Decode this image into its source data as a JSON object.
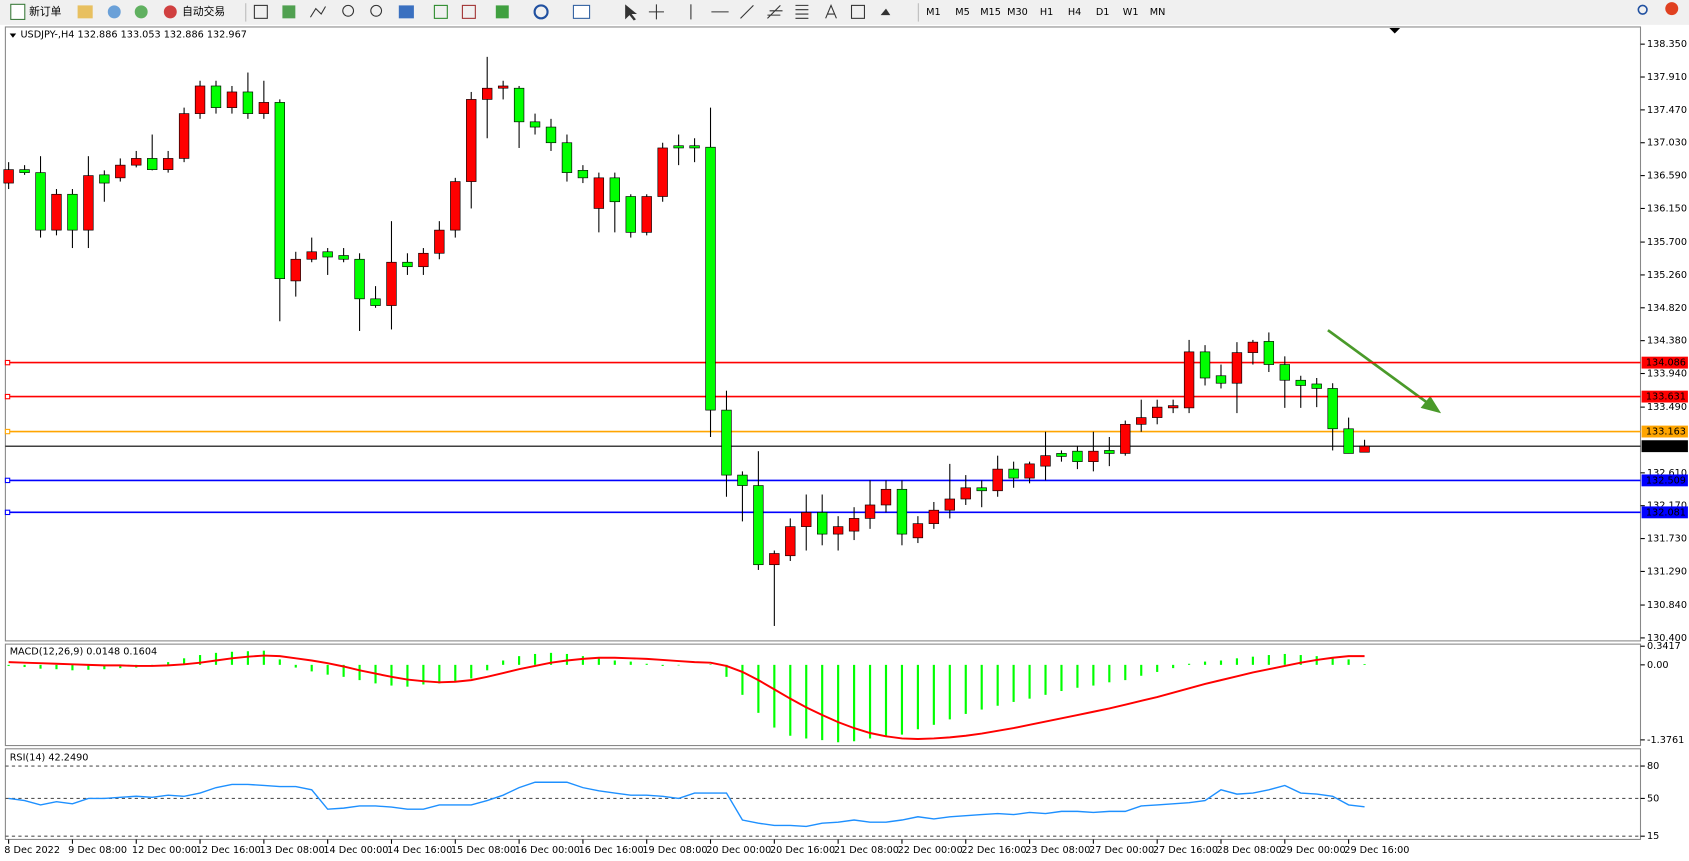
{
  "toolbar": {
    "new_order": "新订单",
    "auto_trading": "自动交易",
    "timeframes": [
      "M1",
      "M5",
      "M15",
      "M30",
      "H1",
      "H4",
      "D1",
      "W1",
      "MN"
    ]
  },
  "chart_data": [
    {
      "type": "candlestick",
      "title": "USDJPY-,H4  132.886 133.053 132.886 132.967",
      "categories": [
        "8 Dec 2022",
        null,
        null,
        null,
        "9 Dec 08:00",
        null,
        null,
        null,
        "12 Dec 00:00",
        null,
        null,
        null,
        "12 Dec 16:00",
        null,
        null,
        null,
        "13 Dec 08:00",
        null,
        null,
        null,
        "14 Dec 00:00",
        null,
        null,
        null,
        "14 Dec 16:00",
        null,
        null,
        null,
        "15 Dec 08:00",
        null,
        null,
        null,
        "16 Dec 00:00",
        null,
        null,
        null,
        "16 Dec 16:00",
        null,
        null,
        null,
        "19 Dec 08:00",
        null,
        null,
        null,
        "20 Dec 00:00",
        null,
        null,
        null,
        "20 Dec 16:00",
        null,
        null,
        null,
        "21 Dec 08:00",
        null,
        null,
        null,
        "22 Dec 00:00",
        null,
        null,
        null,
        "22 Dec 16:00",
        null,
        null,
        null,
        "23 Dec 08:00",
        null,
        null,
        null,
        "27 Dec 00:00",
        null,
        null,
        null,
        "27 Dec 16:00",
        null,
        null,
        null,
        "28 Dec 08:00",
        null,
        null,
        null,
        "29 Dec 00:00",
        null,
        null,
        null,
        "29 Dec 16:00",
        null
      ],
      "open": [
        136.49,
        136.67,
        136.63,
        135.86,
        136.34,
        135.86,
        136.6,
        136.56,
        136.73,
        136.82,
        136.67,
        136.82,
        137.42,
        137.79,
        137.5,
        137.71,
        137.42,
        137.57,
        135.18,
        135.47,
        135.57,
        135.52,
        135.47,
        134.94,
        134.85,
        135.43,
        135.37,
        135.55,
        135.86,
        136.51,
        137.61,
        137.76,
        137.76,
        137.31,
        137.24,
        137.03,
        136.66,
        136.15,
        136.56,
        136.31,
        135.83,
        136.31,
        136.99,
        136.99,
        136.97,
        133.45,
        132.58,
        132.44,
        131.38,
        131.5,
        131.89,
        132.08,
        131.79,
        131.83,
        132.0,
        132.18,
        132.39,
        131.74,
        131.93,
        132.11,
        132.26,
        132.41,
        132.37,
        132.66,
        132.54,
        132.7,
        132.87,
        132.9,
        132.76,
        132.91,
        132.87,
        133.26,
        133.35,
        133.48,
        133.48,
        134.23,
        133.91,
        133.81,
        134.22,
        134.37,
        134.06,
        133.85,
        133.8,
        133.74,
        133.2,
        132.886
      ],
      "high": [
        136.77,
        136.73,
        136.85,
        136.41,
        136.41,
        136.85,
        136.66,
        136.82,
        136.92,
        137.14,
        136.92,
        137.5,
        137.86,
        137.86,
        137.79,
        137.97,
        137.86,
        137.61,
        135.57,
        135.76,
        135.62,
        135.62,
        135.55,
        135.11,
        135.98,
        135.55,
        135.62,
        135.98,
        136.56,
        137.71,
        138.18,
        137.86,
        137.79,
        137.42,
        137.35,
        137.14,
        136.73,
        136.63,
        136.63,
        136.34,
        136.34,
        137.03,
        137.14,
        137.09,
        137.5,
        133.71,
        132.63,
        132.9,
        131.57,
        132.0,
        132.32,
        132.32,
        132.03,
        132.15,
        132.51,
        132.51,
        132.51,
        132.03,
        132.22,
        132.73,
        132.58,
        132.51,
        132.84,
        132.76,
        132.76,
        133.16,
        132.91,
        132.97,
        133.16,
        133.09,
        133.31,
        133.59,
        133.59,
        133.59,
        134.39,
        134.32,
        134.06,
        134.36,
        134.39,
        134.49,
        134.17,
        133.91,
        133.88,
        133.81,
        133.35,
        133.053
      ],
      "low": [
        136.41,
        136.6,
        135.76,
        135.79,
        135.62,
        135.62,
        136.24,
        136.51,
        136.7,
        136.66,
        136.63,
        136.77,
        137.35,
        137.42,
        137.42,
        137.35,
        137.35,
        134.64,
        134.97,
        135.43,
        135.26,
        135.43,
        134.51,
        134.82,
        134.53,
        135.26,
        135.26,
        135.47,
        135.76,
        136.15,
        137.09,
        137.61,
        136.96,
        137.14,
        136.92,
        136.51,
        136.49,
        135.83,
        135.83,
        135.76,
        135.79,
        136.24,
        136.73,
        136.77,
        133.09,
        132.29,
        131.96,
        131.31,
        130.56,
        131.43,
        131.57,
        131.64,
        131.57,
        131.71,
        131.86,
        132.08,
        131.64,
        131.67,
        131.86,
        132.0,
        132.18,
        132.15,
        132.29,
        132.41,
        132.47,
        132.51,
        132.76,
        132.66,
        132.63,
        132.7,
        132.84,
        133.16,
        133.26,
        133.41,
        133.41,
        133.78,
        133.74,
        133.41,
        134.06,
        133.96,
        133.48,
        133.48,
        133.49,
        132.91,
        132.87,
        132.886
      ],
      "close": [
        136.67,
        136.63,
        135.86,
        136.34,
        135.86,
        136.59,
        136.49,
        136.73,
        136.82,
        136.67,
        136.82,
        137.42,
        137.79,
        137.5,
        137.71,
        137.42,
        137.57,
        135.21,
        135.47,
        135.57,
        135.5,
        135.47,
        134.94,
        134.85,
        135.43,
        135.37,
        135.55,
        135.86,
        136.51,
        137.61,
        137.76,
        137.79,
        137.31,
        137.24,
        137.03,
        136.63,
        136.56,
        136.56,
        136.24,
        135.83,
        136.31,
        136.96,
        136.96,
        136.96,
        133.45,
        132.58,
        132.44,
        131.38,
        131.53,
        131.89,
        132.08,
        131.79,
        131.89,
        132.0,
        132.18,
        132.39,
        131.79,
        131.93,
        132.11,
        132.26,
        132.41,
        132.37,
        132.66,
        132.54,
        132.73,
        132.84,
        132.83,
        132.76,
        132.9,
        132.87,
        133.26,
        133.35,
        133.49,
        133.51,
        134.23,
        133.88,
        133.81,
        134.22,
        134.36,
        134.06,
        133.85,
        133.78,
        133.74,
        133.2,
        132.87,
        132.967
      ],
      "up_color": "#ff0000",
      "down_color": "#00ff00",
      "ylim": [
        130.36,
        138.58
      ],
      "yticks": [
        {
          "value": 138.35,
          "label": "138.350"
        },
        {
          "value": 137.91,
          "label": "137.910"
        },
        {
          "value": 137.47,
          "label": "137.470"
        },
        {
          "value": 137.03,
          "label": "137.030"
        },
        {
          "value": 136.59,
          "label": "136.590"
        },
        {
          "value": 136.15,
          "label": "136.150"
        },
        {
          "value": 135.7,
          "label": "135.700"
        },
        {
          "value": 135.26,
          "label": "135.260"
        },
        {
          "value": 134.82,
          "label": "134.820"
        },
        {
          "value": 134.38,
          "label": "134.380"
        },
        {
          "value": 133.94,
          "label": "133.940"
        },
        {
          "value": 133.49,
          "label": "133.490"
        },
        {
          "value": 132.61,
          "label": "132.610"
        },
        {
          "value": 132.17,
          "label": "132.170"
        },
        {
          "value": 131.73,
          "label": "131.730"
        },
        {
          "value": 131.29,
          "label": "131.290"
        },
        {
          "value": 130.84,
          "label": "130.840"
        },
        {
          "value": 130.4,
          "label": "130.400"
        }
      ],
      "hlines": [
        {
          "value": 134.086,
          "color": "#ff0000"
        },
        {
          "value": 133.631,
          "color": "#ff0000"
        },
        {
          "value": 133.163,
          "color": "#ffa500"
        },
        {
          "value": 132.967,
          "color": "#000000"
        },
        {
          "value": 132.509,
          "color": "#0000ff"
        },
        {
          "value": 132.081,
          "color": "#0000ff"
        }
      ]
    },
    {
      "type": "macd",
      "title": "MACD(12,26,9) 0.0148 0.1604",
      "histogram": {
        "color": "#00ff00",
        "values": [
          -0.02,
          -0.04,
          -0.07,
          -0.08,
          -0.1,
          -0.09,
          -0.08,
          -0.06,
          -0.05,
          -0.02,
          0.05,
          0.12,
          0.18,
          0.22,
          0.24,
          0.25,
          0.26,
          0.1,
          -0.05,
          -0.12,
          -0.18,
          -0.22,
          -0.28,
          -0.34,
          -0.38,
          -0.4,
          -0.36,
          -0.34,
          -0.3,
          -0.25,
          -0.1,
          0.08,
          0.16,
          0.2,
          0.22,
          0.2,
          0.16,
          0.12,
          0.08,
          0.06,
          0.02,
          -0.02,
          -0.01,
          0.0,
          0.01,
          -0.22,
          -0.55,
          -0.88,
          -1.15,
          -1.3,
          -1.35,
          -1.38,
          -1.42,
          -1.4,
          -1.35,
          -1.3,
          -1.28,
          -1.18,
          -1.1,
          -1.0,
          -0.9,
          -0.82,
          -0.75,
          -0.68,
          -0.62,
          -0.55,
          -0.48,
          -0.42,
          -0.38,
          -0.32,
          -0.28,
          -0.2,
          -0.13,
          -0.06,
          0.02,
          0.06,
          0.08,
          0.12,
          0.15,
          0.18,
          0.2,
          0.18,
          0.16,
          0.14,
          0.1,
          0.0148
        ]
      },
      "signal": {
        "color": "#ff0000",
        "values": [
          0.05,
          0.04,
          0.03,
          0.02,
          0.01,
          0.0,
          -0.01,
          -0.01,
          -0.02,
          -0.02,
          -0.01,
          0.01,
          0.04,
          0.08,
          0.12,
          0.15,
          0.17,
          0.16,
          0.12,
          0.08,
          0.03,
          -0.03,
          -0.1,
          -0.16,
          -0.22,
          -0.27,
          -0.3,
          -0.32,
          -0.31,
          -0.28,
          -0.22,
          -0.15,
          -0.08,
          -0.02,
          0.04,
          0.08,
          0.11,
          0.13,
          0.13,
          0.12,
          0.11,
          0.09,
          0.07,
          0.05,
          0.04,
          -0.02,
          -0.13,
          -0.28,
          -0.45,
          -0.62,
          -0.78,
          -0.92,
          -1.05,
          -1.16,
          -1.25,
          -1.31,
          -1.35,
          -1.36,
          -1.35,
          -1.33,
          -1.3,
          -1.26,
          -1.21,
          -1.16,
          -1.1,
          -1.04,
          -0.98,
          -0.92,
          -0.86,
          -0.8,
          -0.73,
          -0.66,
          -0.59,
          -0.51,
          -0.43,
          -0.35,
          -0.28,
          -0.21,
          -0.14,
          -0.08,
          -0.02,
          0.04,
          0.09,
          0.13,
          0.16,
          0.1604
        ]
      },
      "ylim": [
        -1.48,
        0.38
      ],
      "yticks": [
        0.3417,
        {
          "value": 0,
          "label": "0.00"
        },
        -1.3761
      ]
    },
    {
      "type": "line",
      "title": "RSI(14) 42.2490",
      "color": "#1e90ff",
      "values": [
        50,
        48,
        44,
        47,
        45,
        50,
        50,
        51,
        52,
        51,
        53,
        52,
        55,
        60,
        63,
        63,
        62,
        61,
        61,
        58,
        40,
        41,
        43,
        43,
        42,
        40,
        40,
        44,
        44,
        44,
        48,
        53,
        60,
        65,
        65,
        65,
        60,
        57,
        55,
        53,
        53,
        52,
        50,
        55,
        55,
        55,
        30,
        27,
        25,
        25,
        24,
        27,
        28,
        30,
        28,
        28,
        30,
        33,
        31,
        33,
        34,
        35,
        36,
        35,
        37,
        36,
        38,
        38,
        37,
        38,
        38,
        43,
        44,
        45,
        46,
        48,
        58,
        54,
        55,
        58,
        62,
        55,
        54,
        52,
        44,
        42.249
      ],
      "ylim": [
        12,
        96
      ],
      "yticks": [
        80,
        50,
        15
      ],
      "grid": "dashed"
    }
  ]
}
